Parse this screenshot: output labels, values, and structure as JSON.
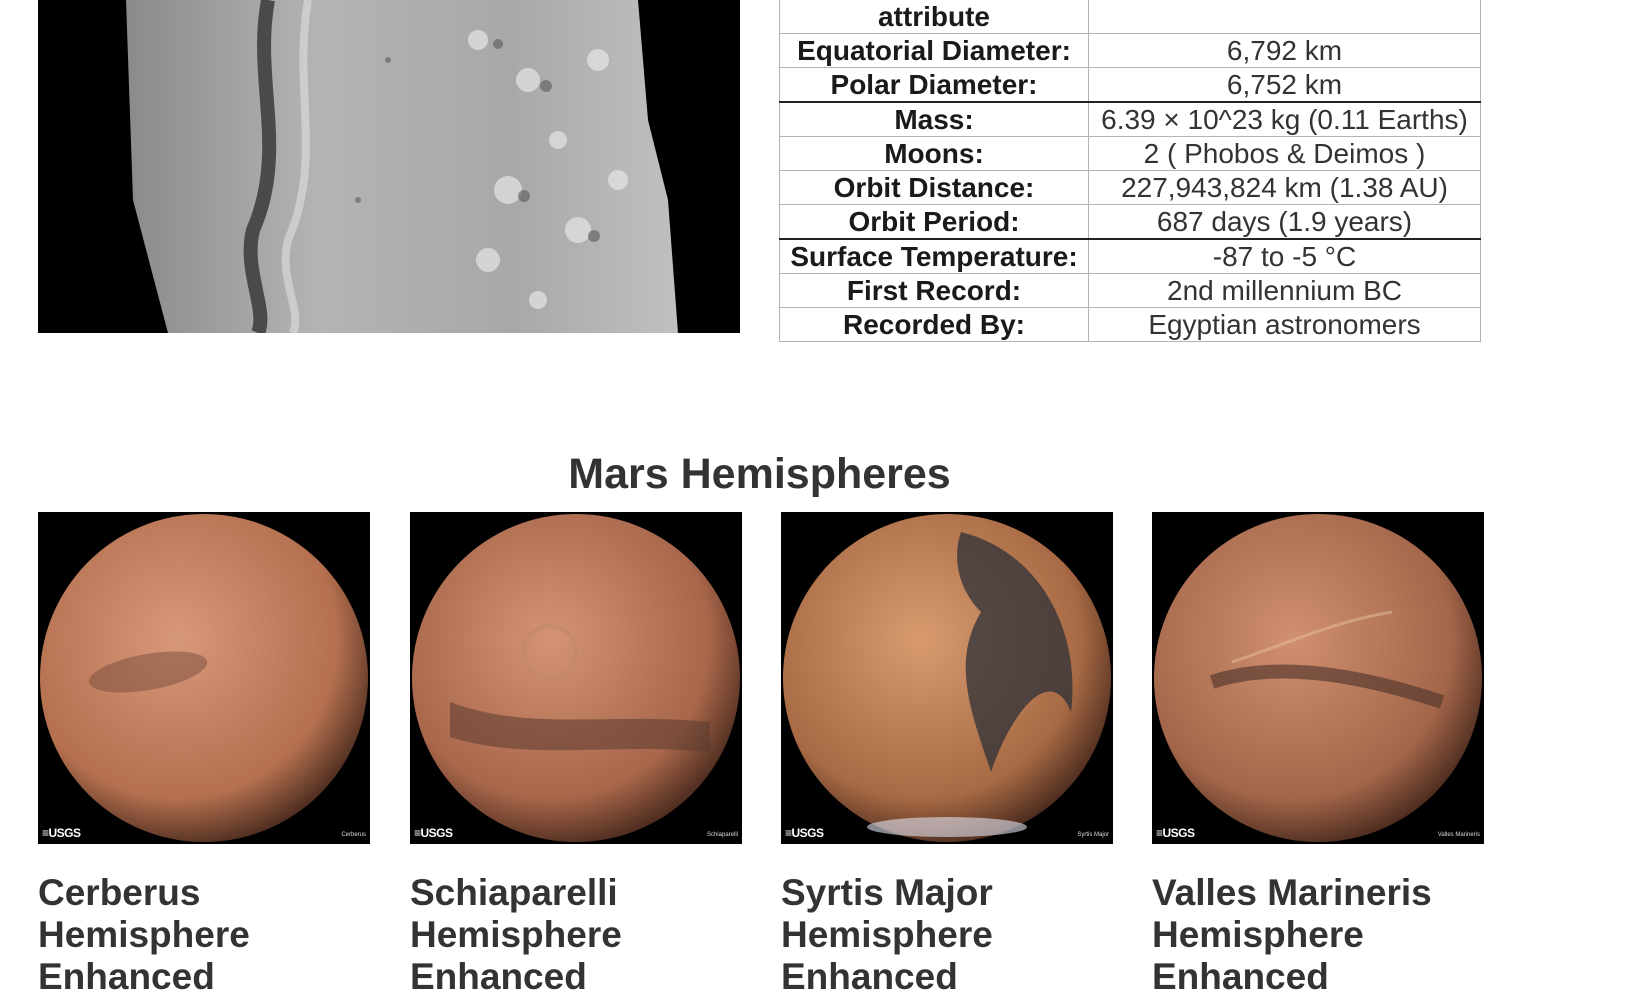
{
  "facts": {
    "rows": [
      {
        "label": "attribute",
        "value": ""
      },
      {
        "label": "Equatorial Diameter:",
        "value": "6,792 km"
      },
      {
        "label": "Polar Diameter:",
        "value": "6,752 km"
      },
      {
        "label": "Mass:",
        "value": "6.39 × 10^23 kg (0.11 Earths)"
      },
      {
        "label": "Moons:",
        "value": "2 ( Phobos & Deimos )"
      },
      {
        "label": "Orbit Distance:",
        "value": "227,943,824 km (1.38 AU)"
      },
      {
        "label": "Orbit Period:",
        "value": "687 days (1.9 years)"
      },
      {
        "label": "Surface Temperature:",
        "value": "-87 to -5 °C"
      },
      {
        "label": "First Record:",
        "value": "2nd millennium BC"
      },
      {
        "label": "Recorded By:",
        "value": "Egyptian astronomers"
      }
    ]
  },
  "hemispheres": {
    "title": "Mars Hemispheres",
    "items": [
      {
        "title": "Cerberus Hemisphere Enhanced",
        "badge": "≡USGS",
        "caption": "Cerberus",
        "colors": [
          "#d8987a",
          "#b4704f",
          "#6e4838"
        ]
      },
      {
        "title": "Schiaparelli Hemisphere Enhanced",
        "badge": "≡USGS",
        "caption": "Schiaparelli",
        "colors": [
          "#d49474",
          "#a8664a",
          "#5a3a30"
        ]
      },
      {
        "title": "Syrtis Major Hemisphere Enhanced",
        "badge": "≡USGS",
        "caption": "Syrtis Major",
        "colors": [
          "#d89a6e",
          "#a86a44",
          "#2e3038"
        ]
      },
      {
        "title": "Valles Marineris Hemisphere Enhanced",
        "badge": "≡USGS",
        "caption": "Valles Marineris",
        "colors": [
          "#d09070",
          "#a4664a",
          "#4a3028"
        ]
      }
    ]
  }
}
